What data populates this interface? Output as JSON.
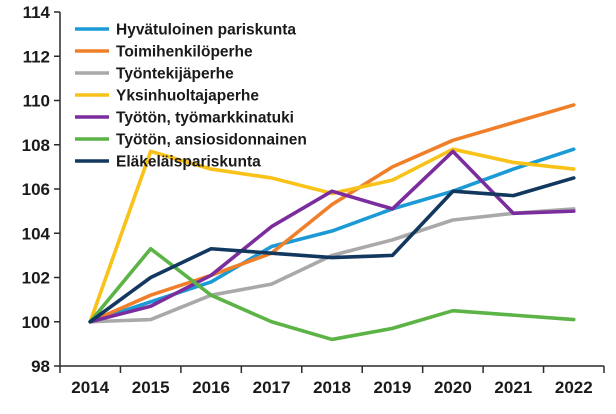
{
  "chart_data": {
    "type": "line",
    "title": "",
    "xlabel": "",
    "ylabel": "",
    "x": [
      "2014",
      "2015",
      "2016",
      "2017",
      "2018",
      "2019",
      "2020",
      "2021",
      "2022"
    ],
    "ylim": [
      98,
      114
    ],
    "yticks": [
      "98",
      "100",
      "102",
      "104",
      "106",
      "108",
      "110",
      "112",
      "114"
    ],
    "grid": false,
    "legend_position": "top-left",
    "series": [
      {
        "name": "Hyvätuloinen pariskunta",
        "color": "#1b9ad6",
        "values": [
          100,
          100.9,
          101.8,
          103.4,
          104.1,
          105.1,
          105.9,
          106.9,
          107.8
        ]
      },
      {
        "name": "Toimihenkilöperhe",
        "color": "#f07f2a",
        "values": [
          100,
          101.2,
          102.1,
          103.1,
          105.3,
          107.0,
          108.2,
          109.0,
          109.8
        ]
      },
      {
        "name": "Työntekijäperhe",
        "color": "#a9a9a9",
        "values": [
          100,
          100.1,
          101.2,
          101.7,
          103.0,
          103.7,
          104.6,
          104.9,
          105.1
        ]
      },
      {
        "name": "Yksinhuoltajaperhe",
        "color": "#f9c219",
        "values": [
          100,
          107.7,
          106.9,
          106.5,
          105.8,
          106.4,
          107.8,
          107.2,
          106.9
        ]
      },
      {
        "name": "Työtön, työmarkkinatuki",
        "color": "#7b2d9e",
        "values": [
          100,
          100.7,
          102.1,
          104.3,
          105.9,
          105.1,
          107.7,
          104.9,
          105.0
        ]
      },
      {
        "name": "Työtön, ansiosidonnainen",
        "color": "#5cb346",
        "values": [
          100,
          103.3,
          101.2,
          100.0,
          99.2,
          99.7,
          100.5,
          100.3,
          100.1
        ]
      },
      {
        "name": "Eläkeläispariskunta",
        "color": "#13385f",
        "values": [
          100,
          102.0,
          103.3,
          103.1,
          102.9,
          103.0,
          105.9,
          105.7,
          106.5
        ]
      }
    ]
  }
}
